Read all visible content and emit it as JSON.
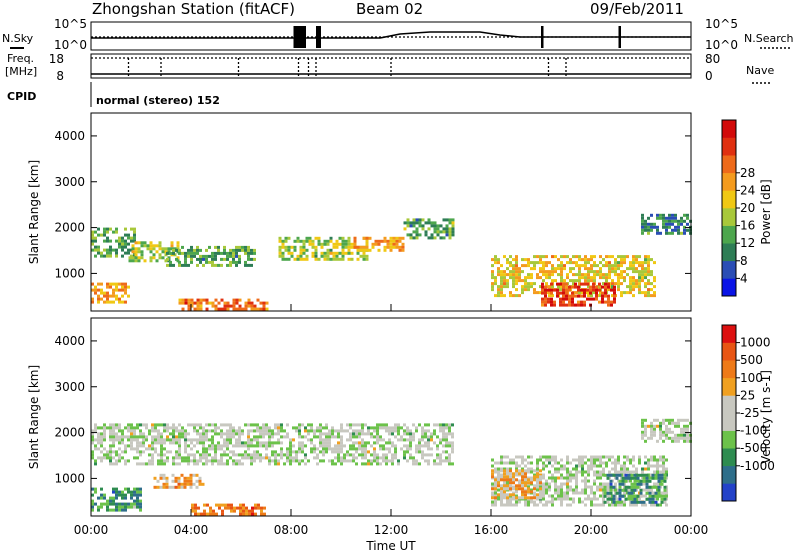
{
  "header": {
    "station": "Zhongshan Station (fitACF)",
    "beam": "Beam 02",
    "date": "09/Feb/2011"
  },
  "strip_panels": {
    "nsky_label": "N.Sky",
    "nsearch_label": "N.Search",
    "freq_label_1": "Freq.",
    "freq_label_2": "[MHz]",
    "nave_label": "Nave",
    "cpid_label": "CPID",
    "cpid_text": "normal (stereo) 152",
    "noise_ticks_left": [
      "10^5",
      "10^0"
    ],
    "noise_ticks_right": [
      "10^5",
      "10^0"
    ],
    "freq_ticks_left": [
      "18",
      "8"
    ],
    "nave_ticks_right": [
      "80",
      "0"
    ]
  },
  "chart_data": [
    {
      "type": "heatmap",
      "panel": "power",
      "ylabel": "Slant Range [km]",
      "xlabel": "",
      "xlim": [
        "00:00",
        "00:00"
      ],
      "ylim": [
        180,
        4500
      ],
      "yticks": [
        "1000",
        "2000",
        "3000",
        "4000"
      ],
      "colorbar": {
        "label": "Power [dB]",
        "ticks": [
          "4",
          "8",
          "12",
          "16",
          "20",
          "24",
          "28"
        ],
        "colors": [
          "#0a14e6",
          "#2a4db5",
          "#2e7d55",
          "#4da64d",
          "#a8c83a",
          "#f0c814",
          "#f49b1e",
          "#ee6a1a",
          "#e03010",
          "#d20a0a"
        ]
      },
      "regions": [
        {
          "t": [
            0.0,
            1.8
          ],
          "r": [
            1400,
            2000
          ],
          "level": 3
        },
        {
          "t": [
            0.0,
            1.5
          ],
          "r": [
            400,
            800
          ],
          "level": 6
        },
        {
          "t": [
            1.5,
            3.5
          ],
          "r": [
            1300,
            1700
          ],
          "level": 4
        },
        {
          "t": [
            3.0,
            6.5
          ],
          "r": [
            1200,
            1600
          ],
          "level": 3
        },
        {
          "t": [
            3.5,
            7.0
          ],
          "r": [
            250,
            450
          ],
          "level": 7
        },
        {
          "t": [
            7.5,
            11.0
          ],
          "r": [
            1300,
            1800
          ],
          "level": 4
        },
        {
          "t": [
            10.5,
            12.5
          ],
          "r": [
            1500,
            1800
          ],
          "level": 6
        },
        {
          "t": [
            12.5,
            14.5
          ],
          "r": [
            1800,
            2200
          ],
          "level": 3
        },
        {
          "t": [
            16.0,
            22.5
          ],
          "r": [
            500,
            1400
          ],
          "level": 5
        },
        {
          "t": [
            18.0,
            21.0
          ],
          "r": [
            300,
            800
          ],
          "level": 8
        },
        {
          "t": [
            22.0,
            24.0
          ],
          "r": [
            1900,
            2300
          ],
          "level": 2
        }
      ]
    },
    {
      "type": "heatmap",
      "panel": "velocity",
      "ylabel": "Slant Range [km]",
      "xlabel": "Time UT",
      "xticks": [
        "00:00",
        "04:00",
        "08:00",
        "12:00",
        "16:00",
        "20:00",
        "00:00"
      ],
      "ylim": [
        180,
        4500
      ],
      "yticks": [
        "1000",
        "2000",
        "3000",
        "4000"
      ],
      "colorbar": {
        "label": "Velocity [m s-1]",
        "ticks": [
          "1000",
          "500",
          "100",
          "25",
          "-25",
          "-100",
          "-500",
          "-1000"
        ],
        "colors": [
          "#2342c8",
          "#2e6e8a",
          "#2e8c50",
          "#6cc24a",
          "#c8c8c0",
          "#c8c8c0",
          "#f0a020",
          "#ee7a18",
          "#e85514",
          "#dd1010"
        ]
      },
      "regions": [
        {
          "t": [
            0.0,
            14.5
          ],
          "r": [
            1300,
            2200
          ],
          "level": 4
        },
        {
          "t": [
            0.0,
            2.0
          ],
          "r": [
            300,
            800
          ],
          "level": 2
        },
        {
          "t": [
            2.5,
            4.5
          ],
          "r": [
            800,
            1100
          ],
          "level": 6
        },
        {
          "t": [
            4.0,
            7.0
          ],
          "r": [
            250,
            450
          ],
          "level": 7
        },
        {
          "t": [
            16.0,
            23.0
          ],
          "r": [
            400,
            1500
          ],
          "level": 4
        },
        {
          "t": [
            16.0,
            18.0
          ],
          "r": [
            600,
            1200
          ],
          "level": 6
        },
        {
          "t": [
            20.5,
            23.0
          ],
          "r": [
            500,
            1100
          ],
          "level": 2
        },
        {
          "t": [
            22.0,
            24.0
          ],
          "r": [
            1800,
            2300
          ],
          "level": 4
        }
      ]
    }
  ]
}
